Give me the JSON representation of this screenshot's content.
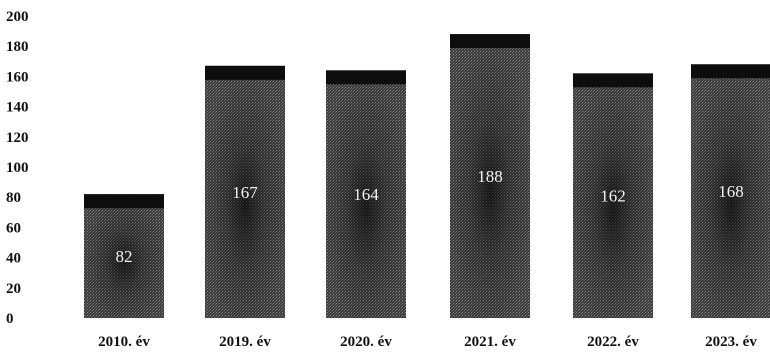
{
  "chart_data": {
    "type": "bar",
    "categories": [
      "2010. év",
      "2019. év",
      "2020. év",
      "2021. év",
      "2022. év",
      "2023. év"
    ],
    "values": [
      82,
      167,
      164,
      188,
      162,
      168
    ],
    "data_labels": [
      "82",
      "167",
      "164",
      "188",
      "162",
      "168"
    ],
    "y_ticks": [
      "0",
      "20",
      "40",
      "60",
      "80",
      "100",
      "120",
      "140",
      "160",
      "180",
      "200"
    ],
    "ylim": [
      0,
      200
    ],
    "grid": false,
    "legend": "none",
    "colors": {
      "bar_fill": "#3a3a3a",
      "bar_top": "#0d0d0d",
      "bar_center": "#1c1c1c",
      "label_text": "#f2f2f2",
      "axis_text": "#111111"
    }
  }
}
